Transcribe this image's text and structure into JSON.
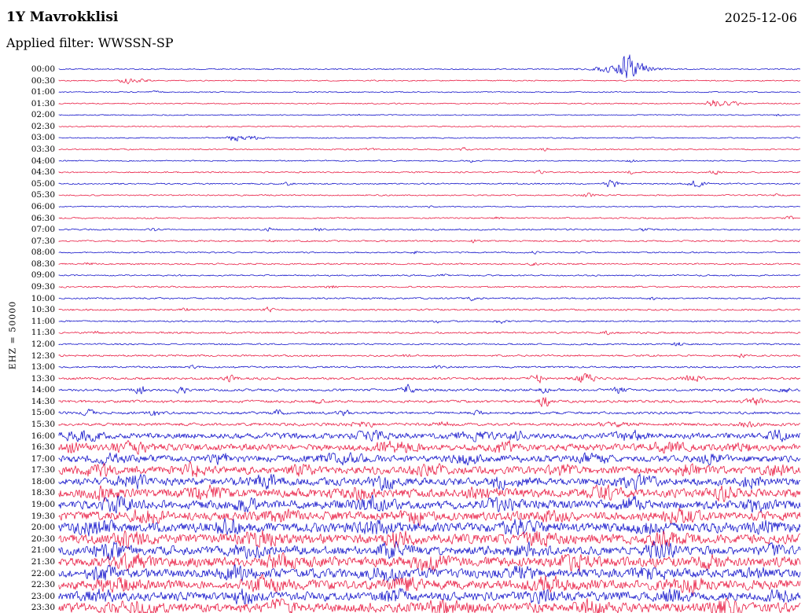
{
  "header": {
    "station": "1Y Mavrokklisi",
    "date": "2025-12-06",
    "filter_label": "Applied filter: WWSSN-SP"
  },
  "chart_data": {
    "type": "line",
    "title": "1Y Mavrokklisi helicorder (24h, 30-minute rows)",
    "station": "1Y Mavrokklisi",
    "date": "2025-12-06",
    "filter": "WWSSN-SP",
    "channel": "EHZ",
    "scale": 50000,
    "y_axis_label": "EHZ = 50000",
    "row_minutes": 30,
    "time_range": [
      "00:00",
      "24:00"
    ],
    "grid": false,
    "legend": "none",
    "colors": {
      "blue": "#0a0ac8",
      "red": "#e8143c",
      "text": "#000000",
      "background": "#ffffff"
    },
    "rows": [
      {
        "t": "00:00",
        "c": "b",
        "n": 0.6,
        "e": [
          [
            0.765,
            18,
            0.004
          ],
          [
            0.775,
            6,
            0.014
          ],
          [
            0.76,
            3,
            0.03
          ]
        ]
      },
      {
        "t": "00:30",
        "c": "r",
        "n": 0.6,
        "e": [
          [
            0.09,
            2.2,
            0.007
          ],
          [
            0.105,
            1.5,
            0.012
          ]
        ]
      },
      {
        "t": "01:00",
        "c": "b",
        "n": 0.55,
        "e": [
          [
            0.13,
            0.8,
            0.004
          ]
        ]
      },
      {
        "t": "01:30",
        "c": "r",
        "n": 0.6,
        "e": [
          [
            0.885,
            4,
            0.007
          ],
          [
            0.9,
            2,
            0.015
          ]
        ]
      },
      {
        "t": "02:00",
        "c": "b",
        "n": 0.55,
        "e": [
          [
            0.4,
            0.7,
            0.004
          ],
          [
            0.97,
            1,
            0.004
          ]
        ]
      },
      {
        "t": "02:30",
        "c": "r",
        "n": 0.6,
        "e": [
          [
            0.2,
            0.8,
            0.004
          ],
          [
            0.63,
            0.8,
            0.004
          ]
        ]
      },
      {
        "t": "03:00",
        "c": "b",
        "n": 0.6,
        "e": [
          [
            0.235,
            3,
            0.005
          ],
          [
            0.255,
            2,
            0.012
          ]
        ]
      },
      {
        "t": "03:30",
        "c": "r",
        "n": 0.7,
        "e": [
          [
            0.42,
            1.8,
            0.004
          ],
          [
            0.545,
            2.2,
            0.003
          ],
          [
            0.655,
            1.8,
            0.003
          ]
        ]
      },
      {
        "t": "04:00",
        "c": "b",
        "n": 0.6,
        "e": [
          [
            0.555,
            1.3,
            0.003
          ],
          [
            0.77,
            1.8,
            0.004
          ]
        ]
      },
      {
        "t": "04:30",
        "c": "r",
        "n": 0.7,
        "e": [
          [
            0.65,
            1.8,
            0.004
          ],
          [
            0.77,
            1.5,
            0.004
          ],
          [
            0.885,
            1.8,
            0.005
          ]
        ]
      },
      {
        "t": "05:00",
        "c": "b",
        "n": 0.7,
        "e": [
          [
            0.31,
            1.8,
            0.004
          ],
          [
            0.745,
            4,
            0.006
          ],
          [
            0.86,
            3.5,
            0.008
          ]
        ]
      },
      {
        "t": "05:30",
        "c": "r",
        "n": 0.7,
        "e": [
          [
            0.715,
            2.2,
            0.005
          ],
          [
            0.97,
            1.3,
            0.004
          ]
        ]
      },
      {
        "t": "06:00",
        "c": "b",
        "n": 0.6,
        "e": [
          [
            0.5,
            0.7,
            0.004
          ]
        ]
      },
      {
        "t": "06:30",
        "c": "r",
        "n": 0.7,
        "e": [
          [
            0.59,
            1.3,
            0.004
          ],
          [
            0.985,
            1.8,
            0.004
          ]
        ]
      },
      {
        "t": "07:00",
        "c": "b",
        "n": 0.8,
        "e": [
          [
            0.13,
            1.3,
            0.005
          ],
          [
            0.285,
            1.6,
            0.004
          ],
          [
            0.35,
            1.3,
            0.004
          ],
          [
            0.79,
            1.6,
            0.004
          ]
        ]
      },
      {
        "t": "07:30",
        "c": "r",
        "n": 0.8,
        "e": [
          [
            0.285,
            1.3,
            0.004
          ],
          [
            0.56,
            1.3,
            0.004
          ]
        ]
      },
      {
        "t": "08:00",
        "c": "b",
        "n": 0.7,
        "e": [
          [
            0.48,
            1.3,
            0.004
          ],
          [
            0.64,
            1.2,
            0.004
          ]
        ]
      },
      {
        "t": "08:30",
        "c": "r",
        "n": 0.8,
        "e": [
          [
            0.04,
            1.3,
            0.004
          ],
          [
            0.64,
            1.6,
            0.004
          ]
        ]
      },
      {
        "t": "09:00",
        "c": "b",
        "n": 0.7,
        "e": [
          [
            0.52,
            0.9,
            0.004
          ]
        ]
      },
      {
        "t": "09:30",
        "c": "r",
        "n": 0.8,
        "e": [
          [
            0.37,
            1.8,
            0.005
          ]
        ]
      },
      {
        "t": "10:00",
        "c": "b",
        "n": 0.8,
        "e": [
          [
            0.56,
            1.8,
            0.006
          ],
          [
            0.8,
            1.2,
            0.004
          ]
        ]
      },
      {
        "t": "10:30",
        "c": "r",
        "n": 0.9,
        "e": [
          [
            0.17,
            1.3,
            0.004
          ],
          [
            0.285,
            3,
            0.005
          ]
        ]
      },
      {
        "t": "11:00",
        "c": "b",
        "n": 0.8,
        "e": [
          [
            0.51,
            1.3,
            0.004
          ],
          [
            0.595,
            1.8,
            0.005
          ]
        ]
      },
      {
        "t": "11:30",
        "c": "r",
        "n": 0.9,
        "e": [
          [
            0.05,
            1.6,
            0.004
          ],
          [
            0.74,
            1.3,
            0.004
          ]
        ]
      },
      {
        "t": "12:00",
        "c": "b",
        "n": 0.8,
        "e": [
          [
            0.835,
            1.8,
            0.005
          ]
        ]
      },
      {
        "t": "12:30",
        "c": "r",
        "n": 0.9,
        "e": [
          [
            0.47,
            1.8,
            0.004
          ],
          [
            0.92,
            1.8,
            0.004
          ]
        ]
      },
      {
        "t": "13:00",
        "c": "b",
        "n": 0.9,
        "e": [
          [
            0.18,
            1.3,
            0.004
          ],
          [
            0.51,
            1.3,
            0.004
          ]
        ]
      },
      {
        "t": "13:30",
        "c": "r",
        "n": 1.2,
        "e": [
          [
            0.23,
            2.6,
            0.006
          ],
          [
            0.645,
            4.5,
            0.006
          ],
          [
            0.71,
            4.5,
            0.008
          ],
          [
            0.855,
            3.5,
            0.008
          ]
        ]
      },
      {
        "t": "14:00",
        "c": "b",
        "n": 1.2,
        "e": [
          [
            0.11,
            3.5,
            0.006
          ],
          [
            0.165,
            4.5,
            0.005
          ],
          [
            0.47,
            4.5,
            0.006
          ],
          [
            0.655,
            3.5,
            0.005
          ],
          [
            0.755,
            4,
            0.006
          ],
          [
            0.98,
            2.6,
            0.005
          ]
        ]
      },
      {
        "t": "14:30",
        "c": "r",
        "n": 1.3,
        "e": [
          [
            0.35,
            1.8,
            0.005
          ],
          [
            0.655,
            5.5,
            0.005
          ],
          [
            0.94,
            3.5,
            0.008
          ]
        ]
      },
      {
        "t": "15:00",
        "c": "b",
        "n": 1.3,
        "e": [
          [
            0.04,
            2.6,
            0.005
          ],
          [
            0.13,
            3,
            0.005
          ],
          [
            0.295,
            3,
            0.005
          ],
          [
            0.385,
            2.6,
            0.005
          ],
          [
            0.565,
            2.2,
            0.004
          ]
        ]
      },
      {
        "t": "15:30",
        "c": "r",
        "n": 1.5,
        "e": [
          [
            0.41,
            2.6,
            0.01
          ],
          [
            0.52,
            2.2,
            0.01
          ],
          [
            0.75,
            2.2,
            0.012
          ],
          [
            0.93,
            2.2,
            0.01
          ]
        ]
      },
      {
        "t": "16:00",
        "c": "b",
        "n": 3,
        "e": [
          [
            0.03,
            3.5,
            0.02
          ],
          [
            0.42,
            3.5,
            0.015
          ],
          [
            0.56,
            2.6,
            0.02
          ],
          [
            0.62,
            3.5,
            0.01
          ],
          [
            0.77,
            3.5,
            0.015
          ],
          [
            0.97,
            3.5,
            0.01
          ]
        ]
      },
      {
        "t": "16:30",
        "c": "r",
        "n": 3.5,
        "e": [
          [
            0.02,
            4,
            0.01
          ],
          [
            0.1,
            3.5,
            0.02
          ],
          [
            0.45,
            4,
            0.02
          ],
          [
            0.6,
            4,
            0.015
          ],
          [
            0.82,
            3.5,
            0.015
          ],
          [
            0.92,
            4,
            0.01
          ]
        ]
      },
      {
        "t": "17:00",
        "c": "b",
        "n": 3.5,
        "e": [
          [
            0.07,
            4,
            0.015
          ],
          [
            0.22,
            3.5,
            0.012
          ],
          [
            0.38,
            3,
            0.02
          ],
          [
            0.55,
            4,
            0.012
          ],
          [
            0.72,
            3.5,
            0.015
          ],
          [
            0.88,
            4,
            0.012
          ]
        ]
      },
      {
        "t": "17:30",
        "c": "r",
        "n": 4,
        "e": [
          [
            0.05,
            4,
            0.015
          ],
          [
            0.18,
            4.5,
            0.012
          ],
          [
            0.33,
            3.5,
            0.015
          ],
          [
            0.5,
            4.5,
            0.015
          ],
          [
            0.68,
            4,
            0.012
          ],
          [
            0.85,
            4.5,
            0.015
          ],
          [
            0.97,
            4,
            0.01
          ]
        ]
      },
      {
        "t": "18:00",
        "c": "b",
        "n": 4,
        "e": [
          [
            0.1,
            4.5,
            0.015
          ],
          [
            0.28,
            4,
            0.015
          ],
          [
            0.44,
            4.5,
            0.012
          ],
          [
            0.6,
            4,
            0.015
          ],
          [
            0.78,
            4.5,
            0.015
          ],
          [
            0.93,
            4,
            0.012
          ]
        ]
      },
      {
        "t": "18:30",
        "c": "r",
        "n": 4.5,
        "e": [
          [
            0.06,
            4.5,
            0.012
          ],
          [
            0.2,
            5,
            0.015
          ],
          [
            0.4,
            4.5,
            0.015
          ],
          [
            0.57,
            5,
            0.012
          ],
          [
            0.74,
            4.5,
            0.015
          ],
          [
            0.9,
            5,
            0.012
          ]
        ]
      },
      {
        "t": "19:00",
        "c": "b",
        "n": 4.5,
        "e": [
          [
            0.08,
            5,
            0.015
          ],
          [
            0.25,
            4.5,
            0.012
          ],
          [
            0.42,
            5,
            0.015
          ],
          [
            0.6,
            4.5,
            0.015
          ],
          [
            0.77,
            5,
            0.012
          ],
          [
            0.94,
            4.5,
            0.012
          ]
        ]
      },
      {
        "t": "19:30",
        "c": "r",
        "n": 4.5,
        "e": [
          [
            0.12,
            5,
            0.015
          ],
          [
            0.3,
            4.5,
            0.015
          ],
          [
            0.48,
            5,
            0.012
          ],
          [
            0.66,
            4.5,
            0.015
          ],
          [
            0.84,
            5,
            0.015
          ]
        ]
      },
      {
        "t": "20:00",
        "c": "b",
        "n": 5,
        "e": [
          [
            0.05,
            5,
            0.015
          ],
          [
            0.23,
            5.5,
            0.012
          ],
          [
            0.43,
            5,
            0.015
          ],
          [
            0.62,
            5.5,
            0.015
          ],
          [
            0.8,
            5,
            0.012
          ],
          [
            0.95,
            5.5,
            0.012
          ]
        ]
      },
      {
        "t": "20:30",
        "c": "r",
        "n": 5,
        "e": [
          [
            0.09,
            5,
            0.015
          ],
          [
            0.27,
            5.5,
            0.015
          ],
          [
            0.46,
            5,
            0.012
          ],
          [
            0.64,
            5.5,
            0.015
          ],
          [
            0.82,
            5,
            0.015
          ]
        ]
      },
      {
        "t": "21:00",
        "c": "b",
        "n": 4.5,
        "e": [
          [
            0.07,
            5,
            0.015
          ],
          [
            0.26,
            4.5,
            0.015
          ],
          [
            0.45,
            5,
            0.012
          ],
          [
            0.63,
            4.5,
            0.015
          ],
          [
            0.81,
            5,
            0.015
          ],
          [
            0.96,
            4.5,
            0.01
          ]
        ]
      },
      {
        "t": "21:30",
        "c": "r",
        "n": 5,
        "e": [
          [
            0.1,
            5,
            0.015
          ],
          [
            0.3,
            5.5,
            0.012
          ],
          [
            0.5,
            5,
            0.015
          ],
          [
            0.7,
            5.5,
            0.015
          ],
          [
            0.88,
            5,
            0.012
          ]
        ]
      },
      {
        "t": "22:00",
        "c": "b",
        "n": 4.5,
        "e": [
          [
            0.06,
            5,
            0.012
          ],
          [
            0.24,
            4.5,
            0.015
          ],
          [
            0.44,
            5,
            0.015
          ],
          [
            0.62,
            4.5,
            0.012
          ],
          [
            0.8,
            5,
            0.015
          ],
          [
            0.94,
            4.5,
            0.012
          ]
        ]
      },
      {
        "t": "22:30",
        "c": "r",
        "n": 5,
        "e": [
          [
            0.08,
            5,
            0.015
          ],
          [
            0.28,
            5.5,
            0.015
          ],
          [
            0.47,
            5,
            0.012
          ],
          [
            0.66,
            5.5,
            0.015
          ],
          [
            0.85,
            5,
            0.015
          ]
        ]
      },
      {
        "t": "23:00",
        "c": "b",
        "n": 4.5,
        "e": [
          [
            0.05,
            4.5,
            0.015
          ],
          [
            0.25,
            5,
            0.012
          ],
          [
            0.45,
            4.5,
            0.015
          ],
          [
            0.65,
            5,
            0.015
          ],
          [
            0.83,
            4.5,
            0.012
          ],
          [
            0.97,
            5,
            0.01
          ]
        ]
      },
      {
        "t": "23:30",
        "c": "r",
        "n": 5,
        "e": [
          [
            0.1,
            5.5,
            0.015
          ],
          [
            0.3,
            5,
            0.012
          ],
          [
            0.52,
            5.5,
            0.015
          ],
          [
            0.72,
            5,
            0.015
          ],
          [
            0.9,
            5.5,
            0.012
          ]
        ]
      }
    ]
  }
}
